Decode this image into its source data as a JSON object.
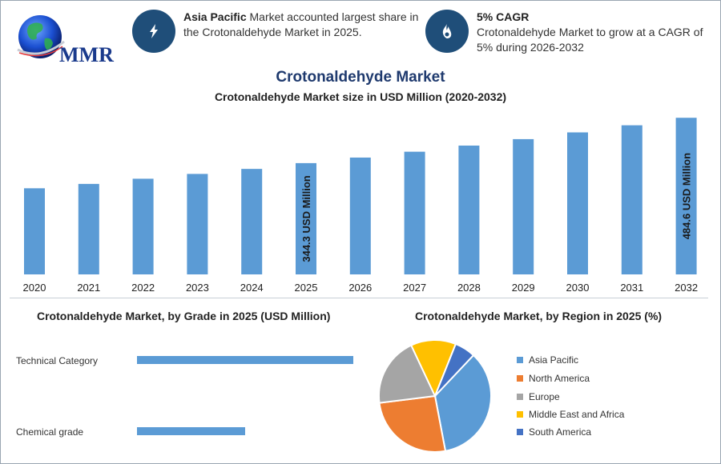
{
  "header": {
    "logo_text": "MMR",
    "kpi1": {
      "bold": "Asia Pacific",
      "text": " Market accounted largest share in the Crotonaldehyde Market in 2025."
    },
    "kpi2": {
      "bold": "5% CAGR",
      "text": "Crotonaldehyde Market to grow at a CAGR of 5% during 2026-2032"
    }
  },
  "colors": {
    "bar": "#5b9bd5",
    "navy": "#1f4e79"
  },
  "chart_data": [
    {
      "type": "bar",
      "title": "Crotonaldehyde Market",
      "subtitle": "Crotonaldehyde Market size in USD Million (2020-2032)",
      "categories": [
        "2020",
        "2021",
        "2022",
        "2023",
        "2024",
        "2025",
        "2026",
        "2027",
        "2028",
        "2029",
        "2030",
        "2031",
        "2032"
      ],
      "values": [
        266.5,
        280.0,
        296.0,
        310.9,
        326.4,
        344.3,
        361.5,
        379.6,
        398.6,
        418.5,
        439.4,
        461.4,
        484.6
      ],
      "data_labels": {
        "5": "344.3 USD Million",
        "12": "484.6 USD Million"
      },
      "ylim": [
        0,
        500
      ]
    },
    {
      "type": "bar",
      "orientation": "horizontal",
      "title": "Crotonaldehyde Market, by Grade in 2025 (USD Million)",
      "categories": [
        "Technical Category",
        "Chemical grade"
      ],
      "values": [
        230,
        115
      ],
      "xlim": [
        0,
        250
      ]
    },
    {
      "type": "pie",
      "title": "Crotonaldehyde Market, by Region in 2025 (%)",
      "labels": [
        "Asia Pacific",
        "North America",
        "Europe",
        "Middle East and Africa",
        "South America"
      ],
      "values": [
        35,
        26,
        20,
        13,
        6
      ],
      "colors": [
        "#5b9bd5",
        "#ed7d31",
        "#a5a5a5",
        "#ffc000",
        "#4472c4"
      ]
    }
  ]
}
